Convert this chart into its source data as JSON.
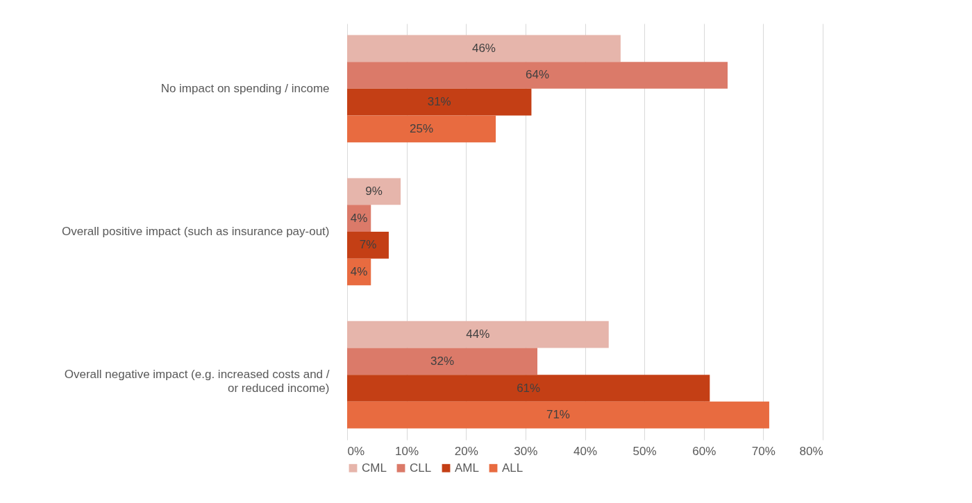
{
  "chart_data": {
    "type": "bar",
    "orientation": "horizontal",
    "categories": [
      "No impact on spending / income",
      "Overall positive impact (such as insurance pay-out)",
      "Overall negative impact (e.g. increased costs and / or reduced income)"
    ],
    "series": [
      {
        "name": "CML",
        "color": "#e6b5ab",
        "values": [
          46,
          9,
          44
        ],
        "value_labels": [
          "46%",
          "9%",
          "44%"
        ]
      },
      {
        "name": "CLL",
        "color": "#db7a69",
        "values": [
          64,
          4,
          32
        ],
        "value_labels": [
          "64%",
          "4%",
          "32%"
        ]
      },
      {
        "name": "AML",
        "color": "#c43f15",
        "values": [
          31,
          7,
          61
        ],
        "value_labels": [
          "31%",
          "7%",
          "61%"
        ]
      },
      {
        "name": "ALL",
        "color": "#e86b40",
        "values": [
          25,
          4,
          71
        ],
        "value_labels": [
          "25%",
          "4%",
          "71%"
        ]
      }
    ],
    "xlim": [
      0,
      80
    ],
    "xticks": [
      {
        "value": 0,
        "label": "0%"
      },
      {
        "value": 10,
        "label": "10%"
      },
      {
        "value": 20,
        "label": "20%"
      },
      {
        "value": 30,
        "label": "30%"
      },
      {
        "value": 40,
        "label": "40%"
      },
      {
        "value": 50,
        "label": "50%"
      },
      {
        "value": 60,
        "label": "60%"
      },
      {
        "value": 70,
        "label": "70%"
      },
      {
        "value": 80,
        "label": "80%"
      }
    ],
    "grid": "x",
    "legend": "bottom"
  }
}
